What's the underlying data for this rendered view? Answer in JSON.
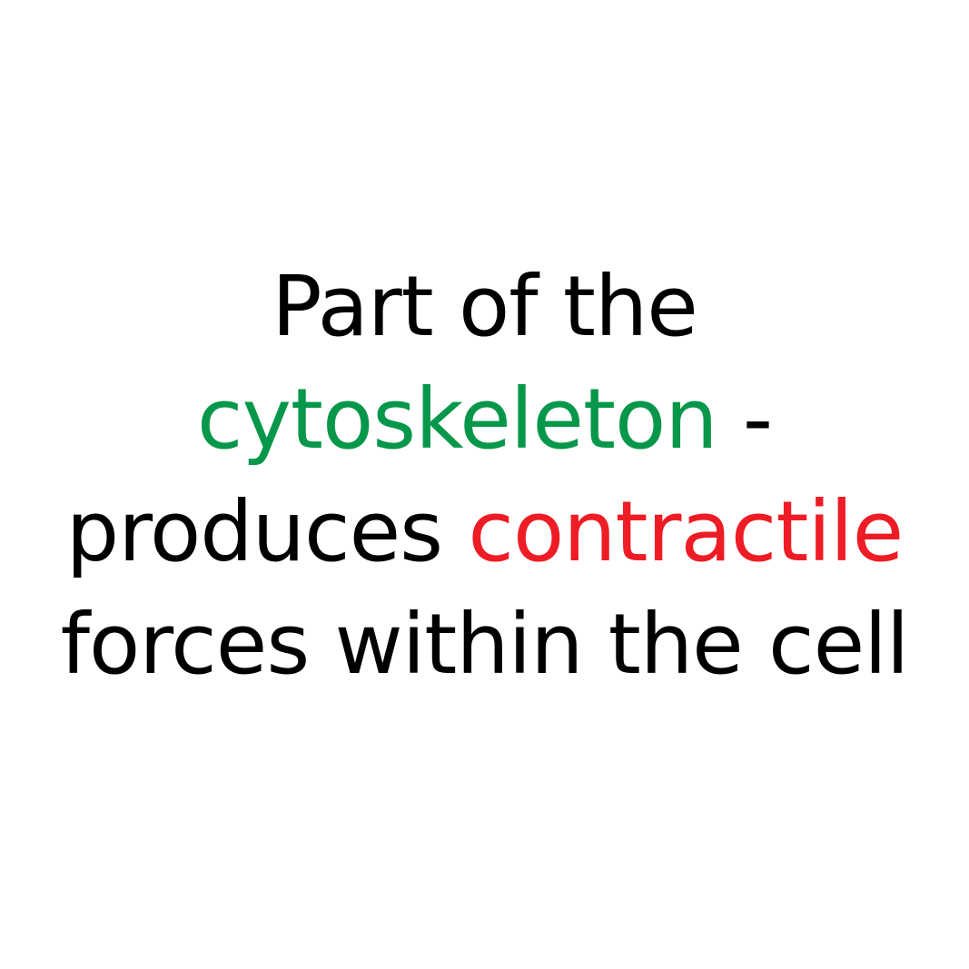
{
  "colors": {
    "background": "#ffffff",
    "text": "#000000",
    "highlight_green": "#07974a",
    "highlight_red": "#ee1c25"
  },
  "definition": {
    "line1": "Part of the",
    "line2_highlight": "cytoskeleton",
    "line2_rest": " -",
    "line3_start": "produces ",
    "line3_highlight": "contractile",
    "line4": "forces within the cell"
  }
}
